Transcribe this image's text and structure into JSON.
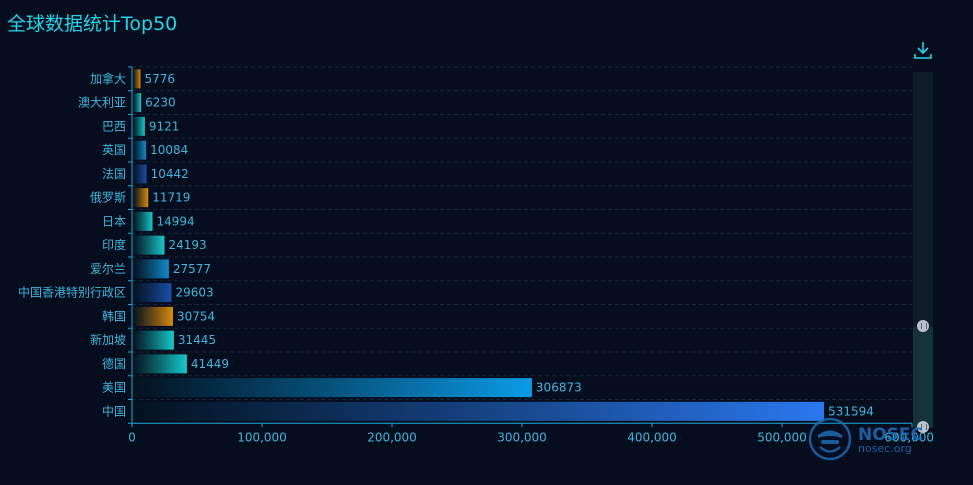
{
  "page": {
    "title": "全球数据统计Top50"
  },
  "colors": {
    "background": "#050d1f",
    "title": "#21d6e8",
    "axis": "#1aa8d6",
    "label": "#3fb6d9",
    "grid": "#13263a"
  },
  "watermark": {
    "brand": "NOSEC",
    "domain": "nosec.org"
  },
  "chart_data": {
    "type": "bar",
    "orientation": "horizontal",
    "title": "全球数据统计Top50",
    "categories": [
      "加拿大",
      "澳大利亚",
      "巴西",
      "英国",
      "法国",
      "俄罗斯",
      "日本",
      "印度",
      "爱尔兰",
      "中国香港特别行政区",
      "韩国",
      "新加坡",
      "德国",
      "美国",
      "中国"
    ],
    "values": [
      5776,
      6230,
      9121,
      10084,
      10442,
      11719,
      14994,
      24193,
      27577,
      29603,
      30754,
      31445,
      41449,
      306873,
      531594
    ],
    "value_labels": [
      "5776",
      "6230",
      "9121",
      "10084",
      "10442",
      "11719",
      "14994",
      "24193",
      "27577",
      "29603",
      "30754",
      "31445",
      "41449",
      "306873",
      "531594"
    ],
    "xlim": [
      0,
      600000
    ],
    "x_ticks": [
      "0",
      "100,000",
      "200,000",
      "300,000",
      "400,000",
      "500,000",
      "600,000"
    ],
    "bar_colors": [
      "#d98a0e",
      "#17c9c9",
      "#17c9c9",
      "#1389c9",
      "#1b4fa8",
      "#d98a0e",
      "#17c9c9",
      "#17c9c9",
      "#1389c9",
      "#1b4fa8",
      "#d98a0e",
      "#17c9c9",
      "#17c9c9",
      "#0a9be6",
      "#2a78ee"
    ],
    "grid": true,
    "legend": "none"
  },
  "controls": {
    "download_icon": "download-icon",
    "zoom_slider": "vertical-data-zoom"
  }
}
